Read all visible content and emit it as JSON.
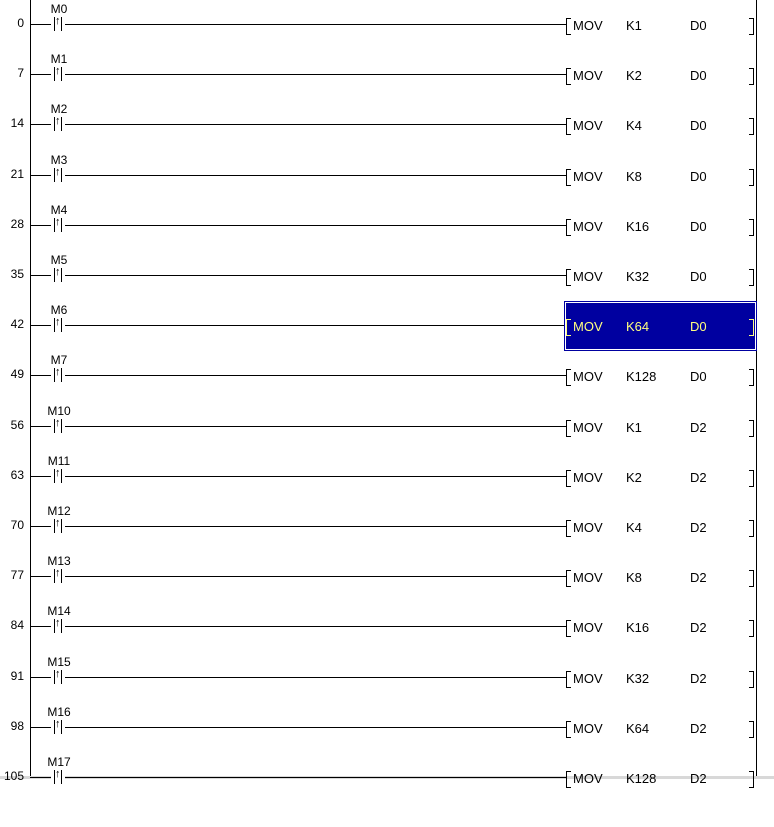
{
  "colors": {
    "selection_bg": "#0000a0",
    "selection_text": "#ffff80",
    "line": "#000000"
  },
  "contact_type": "rising-edge-pulse-contact",
  "rungs": [
    {
      "step": "0",
      "device": "M0",
      "instruction": "MOV",
      "source": "K1",
      "dest": "D0",
      "selected": false
    },
    {
      "step": "7",
      "device": "M1",
      "instruction": "MOV",
      "source": "K2",
      "dest": "D0",
      "selected": false
    },
    {
      "step": "14",
      "device": "M2",
      "instruction": "MOV",
      "source": "K4",
      "dest": "D0",
      "selected": false
    },
    {
      "step": "21",
      "device": "M3",
      "instruction": "MOV",
      "source": "K8",
      "dest": "D0",
      "selected": false
    },
    {
      "step": "28",
      "device": "M4",
      "instruction": "MOV",
      "source": "K16",
      "dest": "D0",
      "selected": false
    },
    {
      "step": "35",
      "device": "M5",
      "instruction": "MOV",
      "source": "K32",
      "dest": "D0",
      "selected": false
    },
    {
      "step": "42",
      "device": "M6",
      "instruction": "MOV",
      "source": "K64",
      "dest": "D0",
      "selected": true
    },
    {
      "step": "49",
      "device": "M7",
      "instruction": "MOV",
      "source": "K128",
      "dest": "D0",
      "selected": false
    },
    {
      "step": "56",
      "device": "M10",
      "instruction": "MOV",
      "source": "K1",
      "dest": "D2",
      "selected": false
    },
    {
      "step": "63",
      "device": "M11",
      "instruction": "MOV",
      "source": "K2",
      "dest": "D2",
      "selected": false
    },
    {
      "step": "70",
      "device": "M12",
      "instruction": "MOV",
      "source": "K4",
      "dest": "D2",
      "selected": false
    },
    {
      "step": "77",
      "device": "M13",
      "instruction": "MOV",
      "source": "K8",
      "dest": "D2",
      "selected": false
    },
    {
      "step": "84",
      "device": "M14",
      "instruction": "MOV",
      "source": "K16",
      "dest": "D2",
      "selected": false
    },
    {
      "step": "91",
      "device": "M15",
      "instruction": "MOV",
      "source": "K32",
      "dest": "D2",
      "selected": false
    },
    {
      "step": "98",
      "device": "M16",
      "instruction": "MOV",
      "source": "K64",
      "dest": "D2",
      "selected": false
    },
    {
      "step": "105",
      "device": "M17",
      "instruction": "MOV",
      "source": "K128",
      "dest": "D2",
      "selected": false
    }
  ]
}
